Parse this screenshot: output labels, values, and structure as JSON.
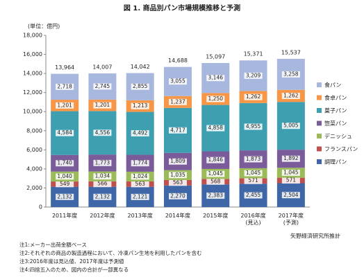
{
  "chart_data": {
    "type": "stacked_bar",
    "title": "図 1. 商品別パン市場規模推移と予測",
    "y_unit_label": "(単位：億円)",
    "categories": [
      "2011年度",
      "2012年度",
      "2013年度",
      "2014年度",
      "2015年度",
      "2016年度\n(見込)",
      "2017年度\n(予測)"
    ],
    "series": [
      {
        "name": "調理パン",
        "color": "#3f67a8",
        "values": [
          2132,
          2132,
          2121,
          2270,
          2383,
          2455,
          2504
        ],
        "value_labels": [
          "2,132",
          "2,132",
          "2,121",
          "2,270",
          "2,383",
          "2,455",
          "2,504"
        ]
      },
      {
        "name": "フランスパン",
        "color": "#c0504d",
        "values": [
          549,
          566,
          563,
          563,
          568,
          571,
          571
        ]
      },
      {
        "name": "デニッシュ",
        "color": "#9bbb59",
        "values": [
          1040,
          1034,
          1024,
          1035,
          1045,
          1045,
          1045
        ],
        "value_labels": [
          "1,040",
          "1,034",
          "1,024",
          "1,035",
          "1,045",
          "1,045",
          "1,045"
        ]
      },
      {
        "name": "惣菜パン",
        "color": "#7a5c9a",
        "values": [
          1740,
          1773,
          1774,
          1809,
          1846,
          1873,
          1892
        ],
        "value_labels": [
          "1,740",
          "1,773",
          "1,774",
          "1,809",
          "1,846",
          "1,873",
          "1,892"
        ]
      },
      {
        "name": "菓子パン",
        "color": "#3e9fb1",
        "values": [
          4584,
          4556,
          4492,
          4717,
          4858,
          4955,
          5005
        ],
        "value_labels": [
          "4,584",
          "4,556",
          "4,492",
          "4,717",
          "4,858",
          "4,955",
          "5,005"
        ]
      },
      {
        "name": "食卓パン",
        "color": "#f79646",
        "values": [
          1201,
          1201,
          1213,
          1237,
          1250,
          1262,
          1262
        ],
        "value_labels": [
          "1,201",
          "1,201",
          "1,213",
          "1,237",
          "1,250",
          "1,262",
          "1,262"
        ]
      },
      {
        "name": "食パン",
        "color": "#a8b7dd",
        "values": [
          2718,
          2745,
          2855,
          3055,
          3146,
          3209,
          3258
        ],
        "value_labels": [
          "2,718",
          "2,745",
          "2,855",
          "3,055",
          "3,146",
          "3,209",
          "3,258"
        ]
      }
    ],
    "totals": [
      13964,
      14007,
      14042,
      14688,
      15097,
      15371,
      15537
    ],
    "total_labels": [
      "13,964",
      "14,007",
      "14,042",
      "14,688",
      "15,097",
      "15,371",
      "15,537"
    ],
    "ylim": [
      0,
      18000
    ],
    "yticks": [
      0,
      {
        "value": 2000,
        "label": "2,000"
      },
      {
        "value": 4000,
        "label": "4,000"
      },
      {
        "value": 6000,
        "label": "6,000"
      },
      {
        "value": 8000,
        "label": "8,000"
      },
      {
        "value": 10000,
        "label": "10,000"
      },
      {
        "value": 12000,
        "label": "12,000"
      },
      {
        "value": 14000,
        "label": "14,000"
      },
      {
        "value": 16000,
        "label": "16,000"
      },
      {
        "value": 18000,
        "label": "18,000"
      }
    ],
    "grid": false,
    "legend": "right",
    "source": "矢野経済研究所推計",
    "notes": [
      "注1:メーカー出荷金額ベース",
      "注2:それぞれの商品の製造過程において、冷凍パン生地を利用したパンを含む",
      "注3:2016年度は見込値、2017年度は予測値",
      "注4:四捨五入のため、図内の合計が一部異なる"
    ]
  }
}
